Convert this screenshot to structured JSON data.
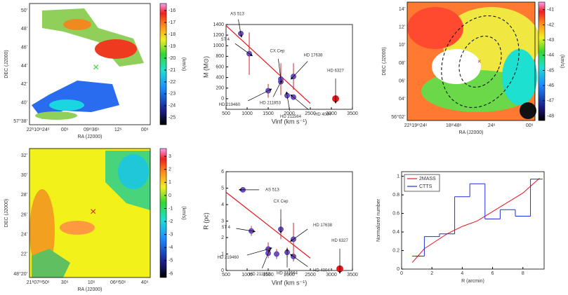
{
  "chart_data": [
    {
      "type": "image",
      "ylabel": "DEC (J2000)",
      "xlabel": "RA (J2000)",
      "colorbar_label": "(km/s)",
      "ytick_labels": [
        "50'",
        "48'",
        "46'",
        "44'",
        "42'",
        "40'",
        "57°38'"
      ],
      "xtick_labels": [
        "22ʰ10ᵐ24ˢ",
        "00ˢ",
        "09ᵐ36ˢ",
        "12ˢ",
        "00ˢ"
      ],
      "clim": [
        -25.6,
        -15.4
      ],
      "colorbar_ticks": [
        -16,
        -17,
        -18,
        -19,
        -20,
        -21,
        -22,
        -23,
        -24,
        -25
      ]
    },
    {
      "type": "scatter",
      "ylabel": "M (M⊙)",
      "xlabel": "Vinf (km s⁻¹)",
      "xlim": [
        500,
        3500
      ],
      "xticks": [
        500,
        1000,
        1500,
        2000,
        2500,
        3000,
        3500
      ],
      "ylim": [
        -200,
        1400
      ],
      "yticks": [
        0,
        200,
        400,
        600,
        800,
        1000,
        1200,
        1400
      ],
      "fit": {
        "x": [
          500,
          2500
        ],
        "y": [
          1380,
          -90
        ],
        "color": "#e8141c"
      },
      "series": [
        {
          "color": "#7d4cb2",
          "x": [
            850,
            1050,
            1500,
            1800,
            1800,
            1950,
            2100,
            2100
          ],
          "values": [
            1230,
            850,
            150,
            320,
            370,
            60,
            30,
            420
          ],
          "errors": [
            30,
            400,
            130,
            250,
            300,
            60,
            40,
            250
          ],
          "labels": [
            "AS 513",
            "ST 4",
            "HD 219460",
            "HD 211853",
            "CX Cep",
            "HD 211564",
            "HD 4004",
            "HD 17638"
          ]
        },
        {
          "color": "#e8141c",
          "x": [
            3100
          ],
          "values": [
            0
          ],
          "labels": [
            "HD 6327"
          ]
        }
      ]
    },
    {
      "type": "image",
      "ylabel": "DEC (J2000)",
      "xlabel": "RA (J2000)",
      "colorbar_label": "(km/s)",
      "ytick_labels": [
        "14'",
        "12'",
        "10'",
        "08'",
        "06'",
        "04'",
        "56°02'"
      ],
      "xtick_labels": [
        "22ʰ19ᵐ24ˢ",
        "18ᵐ48ˢ",
        "24ˢ",
        "00ˢ"
      ],
      "clim": [
        -48.3,
        -40.5
      ],
      "colorbar_ticks": [
        -41,
        -42,
        -43,
        -44,
        -45,
        -46,
        -47,
        -48
      ]
    },
    {
      "type": "image",
      "ylabel": "DEC (J2000)",
      "xlabel": "RA (J2000)",
      "colorbar_label": "(km/s)",
      "ytick_labels": [
        "32'",
        "30'",
        "28'",
        "26'",
        "24'",
        "22'",
        "48°20'"
      ],
      "xtick_labels": [
        "21ʰ07ᵐ50ˢ",
        "30ˢ",
        "10ˢ",
        "06ᵐ50ˢ",
        "40ˢ"
      ],
      "clim": [
        -6.3,
        3.6
      ],
      "colorbar_ticks": [
        3,
        2,
        1,
        0,
        -1,
        -2,
        -3,
        -4,
        -5,
        -6
      ]
    },
    {
      "type": "scatter",
      "ylabel": "R (pc)",
      "xlabel": "Vinf (km s⁻¹)",
      "xlim": [
        500,
        3500
      ],
      "xticks": [
        500,
        1000,
        1500,
        2000,
        2500,
        3000,
        3500
      ],
      "ylim": [
        0,
        6
      ],
      "yticks": [
        0,
        1,
        2,
        3,
        4,
        5,
        6
      ],
      "fit": {
        "x": [
          500,
          2500
        ],
        "y": [
          4.75,
          0.75
        ],
        "color": "#e8141c"
      },
      "series": [
        {
          "color": "#7d4cb2",
          "x": [
            900,
            1100,
            1500,
            1500,
            1700,
            1800,
            1950,
            2100,
            2100
          ],
          "values": [
            4.9,
            2.4,
            1.3,
            1.05,
            1.0,
            2.5,
            1.1,
            0.85,
            1.9
          ],
          "errors": [
            0.05,
            0.3,
            0.4,
            0.3,
            0.3,
            0.6,
            0.3,
            0.3,
            1.0
          ],
          "labels": [
            "AS 513",
            "ST 4",
            "HD 219460",
            "HD 211853",
            null,
            "CX Cep",
            "HD 211564",
            "HD 4004",
            "HD 17638"
          ]
        },
        {
          "color": "#e8141c",
          "x": [
            3200
          ],
          "values": [
            0.1
          ],
          "labels": [
            "HD 6327"
          ]
        }
      ]
    },
    {
      "type": "line",
      "ylabel": "Normalized number",
      "xlabel": "R (arcmin)",
      "xlim": [
        0,
        9.4
      ],
      "xticks": [
        0,
        2,
        4,
        6,
        8
      ],
      "ylim": [
        0,
        1.05
      ],
      "yticks": [
        0,
        0.2,
        0.4,
        0.6,
        0.8,
        1
      ],
      "series": [
        {
          "name": "2MASS",
          "color": "#e8141c",
          "x": [
            0.7,
            1.5,
            3,
            4,
            5,
            6,
            7,
            8,
            9.1
          ],
          "values": [
            0.07,
            0.22,
            0.38,
            0.46,
            0.52,
            0.62,
            0.72,
            0.82,
            0.98
          ]
        },
        {
          "name": "CTTS",
          "color": "#1f2fe0",
          "bins": [
            0.7,
            1.5,
            2.5,
            3.5,
            4.5,
            5.5,
            6.5,
            7.5,
            8.5,
            9.3
          ],
          "values": [
            0.14,
            0.35,
            0.38,
            0.78,
            0.92,
            0.54,
            0.64,
            0.57,
            0.97
          ]
        }
      ]
    }
  ]
}
